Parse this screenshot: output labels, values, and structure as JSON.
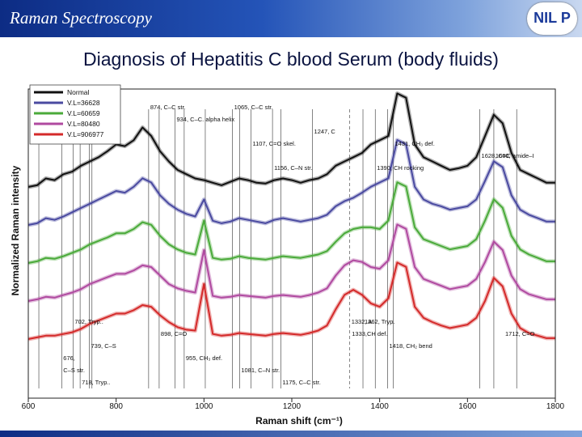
{
  "header": {
    "title": "Raman Spectroscopy",
    "logo_text": "NIL P"
  },
  "slide_title": "Diagnosis of Hepatitis C blood Serum (body fluids)",
  "chart_data": {
    "type": "line",
    "xlabel": "Raman shift (cm⁻¹)",
    "ylabel": "Normalized Raman intensity",
    "xlim": [
      600,
      1800
    ],
    "xticks": [
      600,
      800,
      1000,
      1200,
      1400,
      1600,
      1800
    ],
    "legend_position": "top-left",
    "colors": [
      "#111111",
      "#4a4aa0",
      "#4aaa3a",
      "#b04aa0",
      "#d42a2a"
    ],
    "x": [
      600,
      620,
      640,
      660,
      680,
      700,
      720,
      740,
      760,
      780,
      800,
      820,
      840,
      860,
      880,
      900,
      920,
      940,
      960,
      980,
      1000,
      1020,
      1040,
      1060,
      1080,
      1100,
      1120,
      1140,
      1160,
      1180,
      1200,
      1220,
      1240,
      1260,
      1280,
      1300,
      1320,
      1340,
      1360,
      1380,
      1400,
      1420,
      1440,
      1460,
      1480,
      1500,
      1520,
      1540,
      1560,
      1580,
      1600,
      1620,
      1640,
      1660,
      1680,
      1700,
      1720,
      1740,
      1760,
      1780,
      1800
    ],
    "series": [
      {
        "name": "Normal",
        "offset": 4,
        "values": [
          0.2,
          0.22,
          0.3,
          0.28,
          0.35,
          0.38,
          0.45,
          0.5,
          0.55,
          0.62,
          0.7,
          0.68,
          0.75,
          0.9,
          0.8,
          0.62,
          0.5,
          0.4,
          0.35,
          0.3,
          0.28,
          0.25,
          0.22,
          0.26,
          0.3,
          0.28,
          0.25,
          0.24,
          0.28,
          0.3,
          0.28,
          0.25,
          0.28,
          0.3,
          0.35,
          0.45,
          0.5,
          0.55,
          0.6,
          0.7,
          0.75,
          0.8,
          1.3,
          1.25,
          0.7,
          0.55,
          0.5,
          0.45,
          0.4,
          0.42,
          0.45,
          0.55,
          0.8,
          1.05,
          0.95,
          0.6,
          0.4,
          0.35,
          0.3,
          0.25,
          0.25
        ]
      },
      {
        "name": "V.L=36628",
        "offset": 3,
        "values": [
          0.2,
          0.22,
          0.28,
          0.26,
          0.3,
          0.35,
          0.4,
          0.45,
          0.5,
          0.55,
          0.6,
          0.58,
          0.65,
          0.75,
          0.7,
          0.55,
          0.45,
          0.38,
          0.33,
          0.3,
          0.5,
          0.25,
          0.22,
          0.24,
          0.28,
          0.26,
          0.24,
          0.22,
          0.26,
          0.28,
          0.26,
          0.24,
          0.26,
          0.28,
          0.32,
          0.42,
          0.48,
          0.52,
          0.58,
          0.65,
          0.7,
          0.75,
          1.2,
          1.15,
          0.65,
          0.5,
          0.45,
          0.42,
          0.38,
          0.4,
          0.42,
          0.5,
          0.72,
          0.95,
          0.88,
          0.55,
          0.38,
          0.32,
          0.28,
          0.24,
          0.24
        ]
      },
      {
        "name": "V.L=60659",
        "offset": 2,
        "values": [
          0.2,
          0.22,
          0.26,
          0.25,
          0.28,
          0.32,
          0.36,
          0.42,
          0.46,
          0.5,
          0.55,
          0.55,
          0.6,
          0.68,
          0.65,
          0.52,
          0.42,
          0.36,
          0.32,
          0.3,
          0.7,
          0.26,
          0.24,
          0.25,
          0.28,
          0.26,
          0.25,
          0.24,
          0.26,
          0.28,
          0.27,
          0.26,
          0.28,
          0.3,
          0.34,
          0.45,
          0.55,
          0.6,
          0.62,
          0.62,
          0.6,
          0.7,
          1.15,
          1.1,
          0.62,
          0.48,
          0.44,
          0.4,
          0.36,
          0.38,
          0.4,
          0.48,
          0.7,
          0.95,
          0.85,
          0.52,
          0.36,
          0.3,
          0.26,
          0.22,
          0.22
        ]
      },
      {
        "name": "V.L=80480",
        "offset": 1,
        "values": [
          0.2,
          0.22,
          0.25,
          0.24,
          0.27,
          0.3,
          0.34,
          0.4,
          0.44,
          0.48,
          0.52,
          0.52,
          0.56,
          0.62,
          0.6,
          0.5,
          0.4,
          0.35,
          0.32,
          0.3,
          0.8,
          0.26,
          0.24,
          0.25,
          0.27,
          0.26,
          0.25,
          0.24,
          0.26,
          0.27,
          0.26,
          0.25,
          0.27,
          0.3,
          0.35,
          0.5,
          0.62,
          0.68,
          0.66,
          0.6,
          0.58,
          0.68,
          1.1,
          1.05,
          0.6,
          0.46,
          0.42,
          0.38,
          0.34,
          0.36,
          0.38,
          0.46,
          0.66,
          0.9,
          0.8,
          0.5,
          0.34,
          0.28,
          0.25,
          0.22,
          0.22
        ]
      },
      {
        "name": "V.L=906977",
        "offset": 0,
        "values": [
          0.2,
          0.22,
          0.24,
          0.24,
          0.26,
          0.28,
          0.32,
          0.38,
          0.42,
          0.46,
          0.5,
          0.5,
          0.54,
          0.6,
          0.58,
          0.48,
          0.4,
          0.34,
          0.31,
          0.3,
          0.85,
          0.26,
          0.24,
          0.25,
          0.27,
          0.26,
          0.25,
          0.24,
          0.26,
          0.27,
          0.26,
          0.25,
          0.27,
          0.3,
          0.36,
          0.55,
          0.72,
          0.78,
          0.72,
          0.62,
          0.58,
          0.68,
          1.1,
          1.05,
          0.58,
          0.45,
          0.4,
          0.36,
          0.33,
          0.35,
          0.37,
          0.45,
          0.65,
          0.92,
          0.82,
          0.5,
          0.33,
          0.27,
          0.24,
          0.21,
          0.21
        ]
      }
    ],
    "annotations": [
      {
        "x": 874,
        "text": "874, C–C str.",
        "pos": "top"
      },
      {
        "x": 934,
        "text": "934, C–C. alpha helix",
        "pos": "top"
      },
      {
        "x": 1247,
        "text": "1247, C",
        "pos": "top"
      },
      {
        "x": 1431,
        "text": "1431, CH₃ def.",
        "pos": "top"
      },
      {
        "x": 1660,
        "text": "1660, amide–I",
        "pos": "top"
      },
      {
        "x": 1390,
        "text": "1390, CH rocking",
        "pos": "top"
      },
      {
        "x": 1065,
        "text": "1065, C–C str.",
        "pos": "top"
      },
      {
        "x": 745,
        "text": "745, Tryp.",
        "pos": "top"
      },
      {
        "x": 624,
        "text": "624, C–C twist",
        "pos": "top"
      },
      {
        "x": 1107,
        "text": "1107, C=O skel.",
        "pos": "top"
      },
      {
        "x": 1628,
        "text": "1628, C=C",
        "pos": "top"
      },
      {
        "x": 1156,
        "text": "1156, C–N str.",
        "pos": "top"
      },
      {
        "x": 1332,
        "text": "1332, A",
        "pos": "bottom"
      },
      {
        "x": 898,
        "text": "898, C=O",
        "pos": "bottom"
      },
      {
        "x": 739,
        "text": "739, C–S",
        "pos": "bottom"
      },
      {
        "x": 676,
        "text": "676,",
        "pos": "bottom"
      },
      {
        "x": 676,
        "text": "C–S str.",
        "pos": "bottom"
      },
      {
        "x": 718,
        "text": "718, Tryp..",
        "pos": "bottom"
      },
      {
        "x": 702,
        "text": "702, Tryp..",
        "pos": "bottom"
      },
      {
        "x": 1333,
        "text": "1333,CH def.",
        "pos": "bottom"
      },
      {
        "x": 1418,
        "text": "1418, CH₂ bend",
        "pos": "bottom"
      },
      {
        "x": 955,
        "text": "955, CH₃ def.",
        "pos": "bottom"
      },
      {
        "x": 1081,
        "text": "1081, C–N str.",
        "pos": "bottom"
      },
      {
        "x": 1175,
        "text": "1175, C–C str.",
        "pos": "bottom"
      },
      {
        "x": 1362,
        "text": "1362, Tryp.",
        "pos": "bottom"
      },
      {
        "x": 1712,
        "text": "1712, C=O",
        "pos": "bottom"
      }
    ],
    "peak_lines": [
      624,
      676,
      702,
      718,
      739,
      745,
      874,
      898,
      934,
      955,
      1003,
      1065,
      1081,
      1107,
      1156,
      1175,
      1247,
      1332,
      1362,
      1390,
      1418,
      1431,
      1628,
      1660,
      1712
    ]
  }
}
